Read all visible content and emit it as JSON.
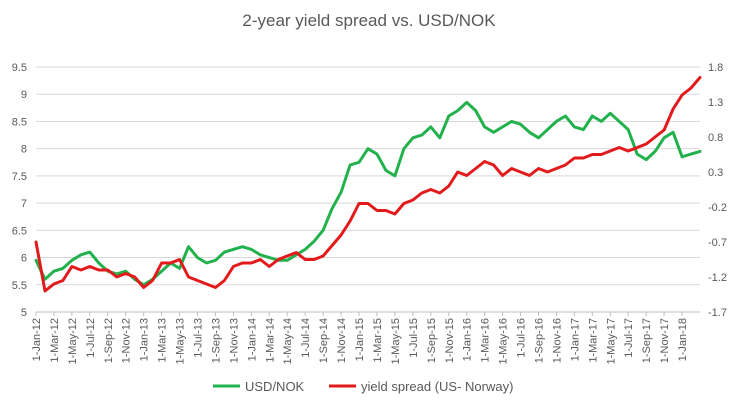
{
  "chart_data": {
    "type": "line",
    "title": "2-year yield spread vs. USD/NOK",
    "xlabel": "",
    "ylabel": "",
    "x_tick_labels": [
      "1-Jan-12",
      "1-Mar-12",
      "1-May-12",
      "1-Jul-12",
      "1-Sep-12",
      "1-Nov-12",
      "1-Jan-13",
      "1-Mar-13",
      "1-May-13",
      "1-Jul-13",
      "1-Sep-13",
      "1-Nov-13",
      "1-Jan-14",
      "1-Mar-14",
      "1-May-14",
      "1-Jul-14",
      "1-Sep-14",
      "1-Nov-14",
      "1-Jan-15",
      "1-Mar-15",
      "1-May-15",
      "1-Jul-15",
      "1-Sep-15",
      "1-Nov-15",
      "1-Jan-16",
      "1-Mar-16",
      "1-May-16",
      "1-Jul-16",
      "1-Sep-16",
      "1-Nov-16",
      "1-Jan-17",
      "1-Mar-17",
      "1-May-17",
      "1-Jul-17",
      "1-Sep-17",
      "1-Nov-17",
      "1-Jan-18"
    ],
    "y_left": {
      "ticks": [
        "5",
        "5.5",
        "6",
        "6.5",
        "7",
        "7.5",
        "8",
        "8.5",
        "9",
        "9.5"
      ],
      "ylim": [
        5,
        9.5
      ]
    },
    "y_right": {
      "ticks": [
        "-1.7",
        "-1.2",
        "-0.7",
        "-0.2",
        "0.3",
        "0.8",
        "1.3",
        "1.8"
      ],
      "ylim": [
        -1.7,
        1.8
      ]
    },
    "grid": true,
    "legend_position": "bottom",
    "series": [
      {
        "name": "USD/NOK",
        "axis": "left",
        "color": "#22b14c",
        "x": [
          "2012-01-01",
          "2012-02-01",
          "2012-03-01",
          "2012-04-01",
          "2012-05-01",
          "2012-06-01",
          "2012-07-01",
          "2012-08-01",
          "2012-09-01",
          "2012-10-01",
          "2012-11-01",
          "2012-12-01",
          "2013-01-01",
          "2013-02-01",
          "2013-03-01",
          "2013-04-01",
          "2013-05-01",
          "2013-06-01",
          "2013-07-01",
          "2013-08-01",
          "2013-09-01",
          "2013-10-01",
          "2013-11-01",
          "2013-12-01",
          "2014-01-01",
          "2014-02-01",
          "2014-03-01",
          "2014-04-01",
          "2014-05-01",
          "2014-06-01",
          "2014-07-01",
          "2014-08-01",
          "2014-09-01",
          "2014-10-01",
          "2014-11-01",
          "2014-12-01",
          "2015-01-01",
          "2015-02-01",
          "2015-03-01",
          "2015-04-01",
          "2015-05-01",
          "2015-06-01",
          "2015-07-01",
          "2015-08-01",
          "2015-09-01",
          "2015-10-01",
          "2015-11-01",
          "2015-12-01",
          "2016-01-01",
          "2016-02-01",
          "2016-03-01",
          "2016-04-01",
          "2016-05-01",
          "2016-06-01",
          "2016-07-01",
          "2016-08-01",
          "2016-09-01",
          "2016-10-01",
          "2016-11-01",
          "2016-12-01",
          "2017-01-01",
          "2017-02-01",
          "2017-03-01",
          "2017-04-01",
          "2017-05-01",
          "2017-06-01",
          "2017-07-01",
          "2017-08-01",
          "2017-09-01",
          "2017-10-01",
          "2017-11-01",
          "2017-12-01",
          "2018-01-01",
          "2018-02-01",
          "2018-03-01"
        ],
        "values": [
          5.95,
          5.6,
          5.75,
          5.8,
          5.95,
          6.05,
          6.1,
          5.9,
          5.75,
          5.7,
          5.75,
          5.6,
          5.5,
          5.6,
          5.75,
          5.9,
          5.8,
          6.2,
          6.0,
          5.9,
          5.95,
          6.1,
          6.15,
          6.2,
          6.15,
          6.05,
          6.0,
          5.95,
          5.95,
          6.05,
          6.15,
          6.3,
          6.5,
          6.9,
          7.2,
          7.7,
          7.75,
          8.0,
          7.9,
          7.6,
          7.5,
          8.0,
          8.2,
          8.25,
          8.4,
          8.2,
          8.6,
          8.7,
          8.85,
          8.7,
          8.4,
          8.3,
          8.4,
          8.5,
          8.45,
          8.3,
          8.2,
          8.35,
          8.5,
          8.6,
          8.4,
          8.35,
          8.6,
          8.5,
          8.65,
          8.5,
          8.35,
          7.9,
          7.8,
          7.95,
          8.2,
          8.3,
          7.85,
          7.9,
          7.95
        ]
      },
      {
        "name": "yield spread (US- Norway)",
        "axis": "right",
        "color": "#e31a1c",
        "x": [
          "2012-01-01",
          "2012-02-01",
          "2012-03-01",
          "2012-04-01",
          "2012-05-01",
          "2012-06-01",
          "2012-07-01",
          "2012-08-01",
          "2012-09-01",
          "2012-10-01",
          "2012-11-01",
          "2012-12-01",
          "2013-01-01",
          "2013-02-01",
          "2013-03-01",
          "2013-04-01",
          "2013-05-01",
          "2013-06-01",
          "2013-07-01",
          "2013-08-01",
          "2013-09-01",
          "2013-10-01",
          "2013-11-01",
          "2013-12-01",
          "2014-01-01",
          "2014-02-01",
          "2014-03-01",
          "2014-04-01",
          "2014-05-01",
          "2014-06-01",
          "2014-07-01",
          "2014-08-01",
          "2014-09-01",
          "2014-10-01",
          "2014-11-01",
          "2014-12-01",
          "2015-01-01",
          "2015-02-01",
          "2015-03-01",
          "2015-04-01",
          "2015-05-01",
          "2015-06-01",
          "2015-07-01",
          "2015-08-01",
          "2015-09-01",
          "2015-10-01",
          "2015-11-01",
          "2015-12-01",
          "2016-01-01",
          "2016-02-01",
          "2016-03-01",
          "2016-04-01",
          "2016-05-01",
          "2016-06-01",
          "2016-07-01",
          "2016-08-01",
          "2016-09-01",
          "2016-10-01",
          "2016-11-01",
          "2016-12-01",
          "2017-01-01",
          "2017-02-01",
          "2017-03-01",
          "2017-04-01",
          "2017-05-01",
          "2017-06-01",
          "2017-07-01",
          "2017-08-01",
          "2017-09-01",
          "2017-10-01",
          "2017-11-01",
          "2017-12-01",
          "2018-01-01",
          "2018-02-01",
          "2018-03-01"
        ],
        "values": [
          -0.7,
          -1.4,
          -1.3,
          -1.25,
          -1.05,
          -1.1,
          -1.05,
          -1.1,
          -1.1,
          -1.2,
          -1.15,
          -1.2,
          -1.35,
          -1.25,
          -1.0,
          -1.0,
          -0.95,
          -1.2,
          -1.25,
          -1.3,
          -1.35,
          -1.25,
          -1.05,
          -1.0,
          -1.0,
          -0.95,
          -1.05,
          -0.95,
          -0.9,
          -0.85,
          -0.95,
          -0.95,
          -0.9,
          -0.75,
          -0.6,
          -0.4,
          -0.15,
          -0.15,
          -0.25,
          -0.25,
          -0.3,
          -0.15,
          -0.1,
          0.0,
          0.05,
          0.0,
          0.1,
          0.3,
          0.25,
          0.35,
          0.45,
          0.4,
          0.25,
          0.35,
          0.3,
          0.25,
          0.35,
          0.3,
          0.35,
          0.4,
          0.5,
          0.5,
          0.55,
          0.55,
          0.6,
          0.65,
          0.6,
          0.65,
          0.7,
          0.8,
          0.9,
          1.2,
          1.4,
          1.5,
          1.65
        ]
      }
    ]
  }
}
